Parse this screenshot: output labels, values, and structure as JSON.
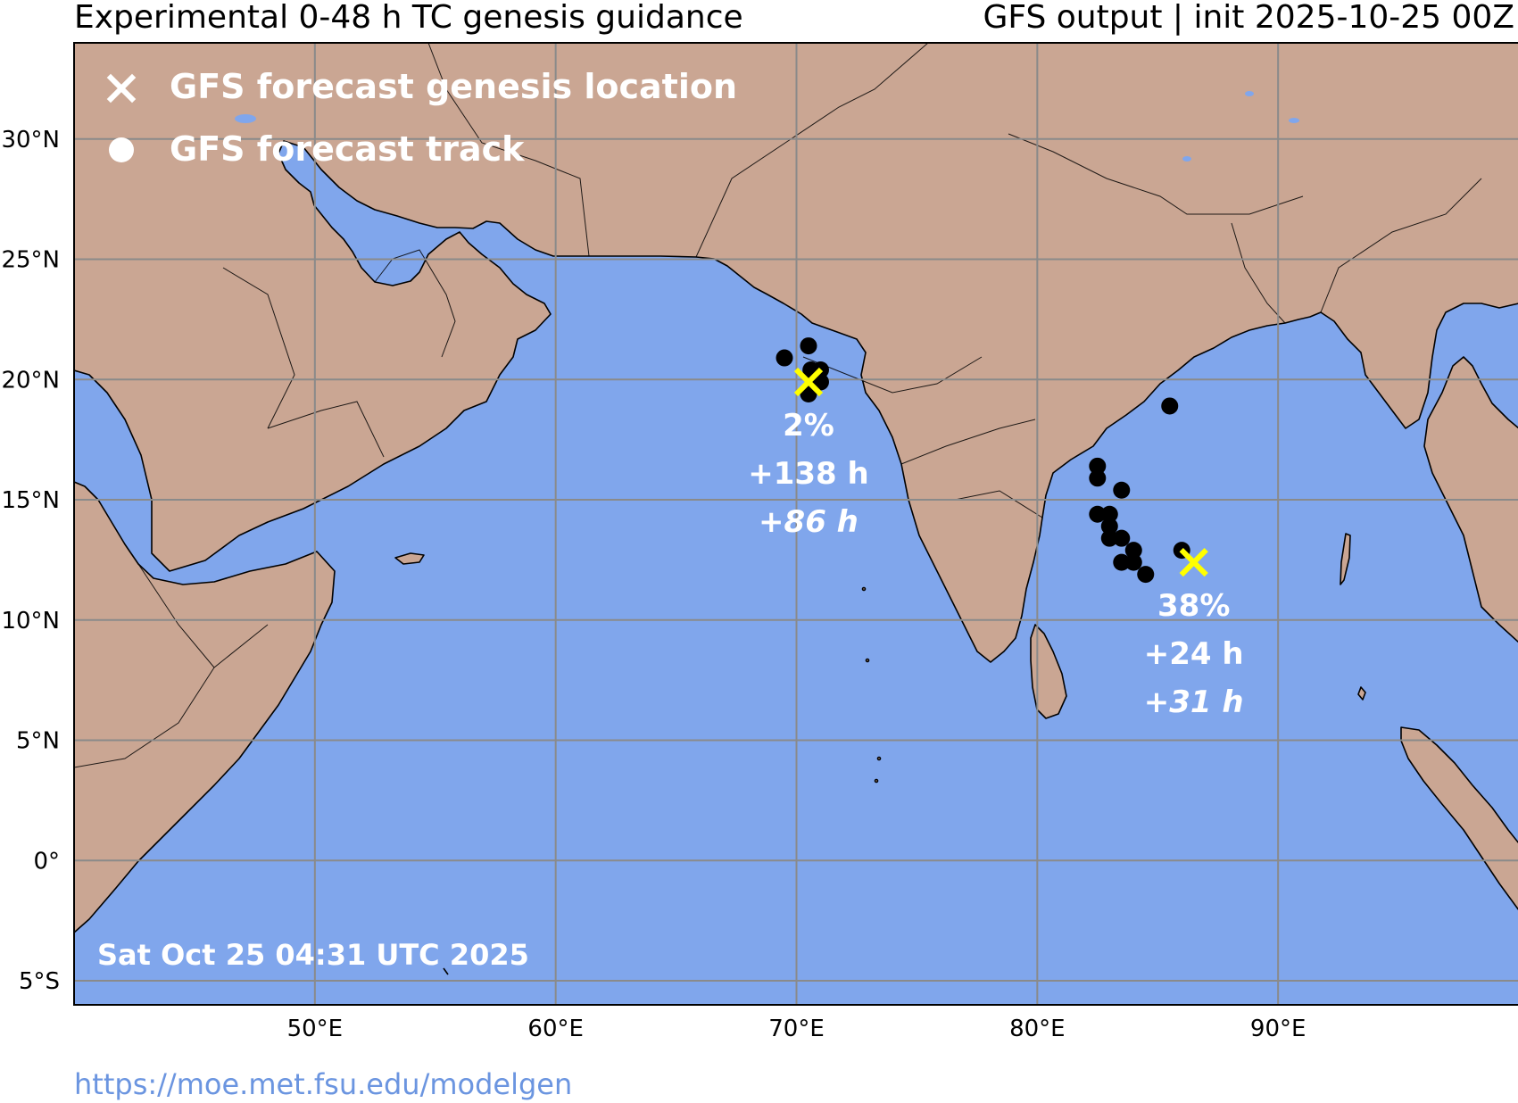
{
  "header": {
    "title": "Experimental 0-48 h TC genesis guidance",
    "model_info": "GFS output | init 2025-10-25 00Z"
  },
  "map": {
    "projection": "Plate Carree",
    "lon_range": [
      40,
      100
    ],
    "lat_range": [
      -6,
      34
    ],
    "colors": {
      "ocean": "#80a6ec",
      "land": "#caa693",
      "grid": "#8a8a8a",
      "genesis_marker": "#ffff00",
      "track_dot": "#000000",
      "label_text": "#ffffff"
    },
    "lat_ticks": [
      {
        "lat": 30,
        "label": "30°N"
      },
      {
        "lat": 25,
        "label": "25°N"
      },
      {
        "lat": 20,
        "label": "20°N"
      },
      {
        "lat": 15,
        "label": "15°N"
      },
      {
        "lat": 10,
        "label": "10°N"
      },
      {
        "lat": 5,
        "label": "5°N"
      },
      {
        "lat": 0,
        "label": "0°"
      },
      {
        "lat": -5,
        "label": "5°S"
      }
    ],
    "lon_ticks": [
      {
        "lon": 50,
        "label": "50°E"
      },
      {
        "lon": 60,
        "label": "60°E"
      },
      {
        "lon": 70,
        "label": "70°E"
      },
      {
        "lon": 80,
        "label": "80°E"
      },
      {
        "lon": 90,
        "label": "90°E"
      }
    ]
  },
  "legend": {
    "items": [
      {
        "icon": "x-marker-icon",
        "label": "GFS forecast genesis location"
      },
      {
        "icon": "dot-marker-icon",
        "label": "GFS forecast track"
      }
    ]
  },
  "systems": [
    {
      "genesis": {
        "lon": 70.5,
        "lat": 19.9
      },
      "probability": "2%",
      "lead_time": "+138 h",
      "duration": "+86 h",
      "track": [
        {
          "lon": 70.5,
          "lat": 21.4
        },
        {
          "lon": 69.5,
          "lat": 20.9
        },
        {
          "lon": 70.6,
          "lat": 20.4
        },
        {
          "lon": 71.0,
          "lat": 20.4
        },
        {
          "lon": 71.0,
          "lat": 19.9
        },
        {
          "lon": 70.5,
          "lat": 19.4
        }
      ]
    },
    {
      "genesis": {
        "lon": 86.5,
        "lat": 12.4
      },
      "probability": "38%",
      "lead_time": "+24 h",
      "duration": "+31 h",
      "track": [
        {
          "lon": 85.5,
          "lat": 18.9
        },
        {
          "lon": 82.5,
          "lat": 16.4
        },
        {
          "lon": 82.5,
          "lat": 15.9
        },
        {
          "lon": 83.5,
          "lat": 15.4
        },
        {
          "lon": 82.5,
          "lat": 14.4
        },
        {
          "lon": 83.0,
          "lat": 14.4
        },
        {
          "lon": 83.0,
          "lat": 13.9
        },
        {
          "lon": 83.0,
          "lat": 13.4
        },
        {
          "lon": 83.5,
          "lat": 13.4
        },
        {
          "lon": 84.0,
          "lat": 12.9
        },
        {
          "lon": 83.5,
          "lat": 12.4
        },
        {
          "lon": 84.0,
          "lat": 12.4
        },
        {
          "lon": 84.5,
          "lat": 11.9
        },
        {
          "lon": 86.0,
          "lat": 12.9
        }
      ]
    }
  ],
  "timestamp": "Sat Oct 25 04:31 UTC 2025",
  "footer": {
    "url": "https://moe.met.fsu.edu/modelgen"
  }
}
